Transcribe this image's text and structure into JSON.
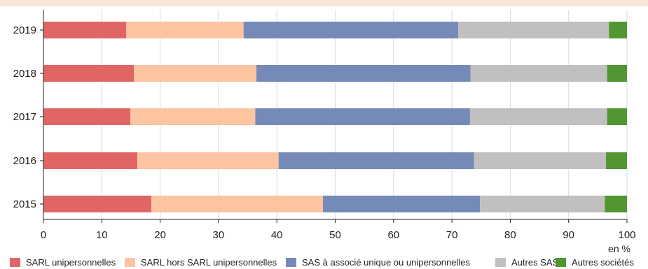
{
  "title": "",
  "chart_data": {
    "type": "bar",
    "orientation": "horizontal",
    "stacked": true,
    "categories": [
      "2019",
      "2018",
      "2017",
      "2016",
      "2015"
    ],
    "series": [
      {
        "name": "SARL unipersonnelles",
        "color": "#e06666",
        "values": [
          14.2,
          15.5,
          14.9,
          16.1,
          18.5
        ]
      },
      {
        "name": "SARL hors SARL unipersonnelles",
        "color": "#fcc4a0",
        "values": [
          20.1,
          21.0,
          21.4,
          24.2,
          29.4
        ]
      },
      {
        "name": "SAS à associé unique ou unipersonnelles",
        "color": "#768ab7",
        "values": [
          36.8,
          36.7,
          36.8,
          33.5,
          26.9
        ]
      },
      {
        "name": "Autres SAS",
        "color": "#c0c0c0",
        "values": [
          25.8,
          23.4,
          23.5,
          22.6,
          21.4
        ]
      },
      {
        "name": "Autres sociétés",
        "color": "#529632",
        "values": [
          3.1,
          3.4,
          3.4,
          3.6,
          3.8
        ]
      }
    ],
    "xlim": [
      0,
      100
    ],
    "xticks": [
      0,
      10,
      20,
      30,
      40,
      50,
      60,
      70,
      80,
      90,
      100
    ],
    "xticks_labels": [
      "0",
      "10",
      "20",
      "30",
      "40",
      "50",
      "60",
      "70",
      "80",
      "90",
      "100"
    ],
    "unit_label": "en %",
    "grid": true,
    "legend_position": "bottom"
  }
}
